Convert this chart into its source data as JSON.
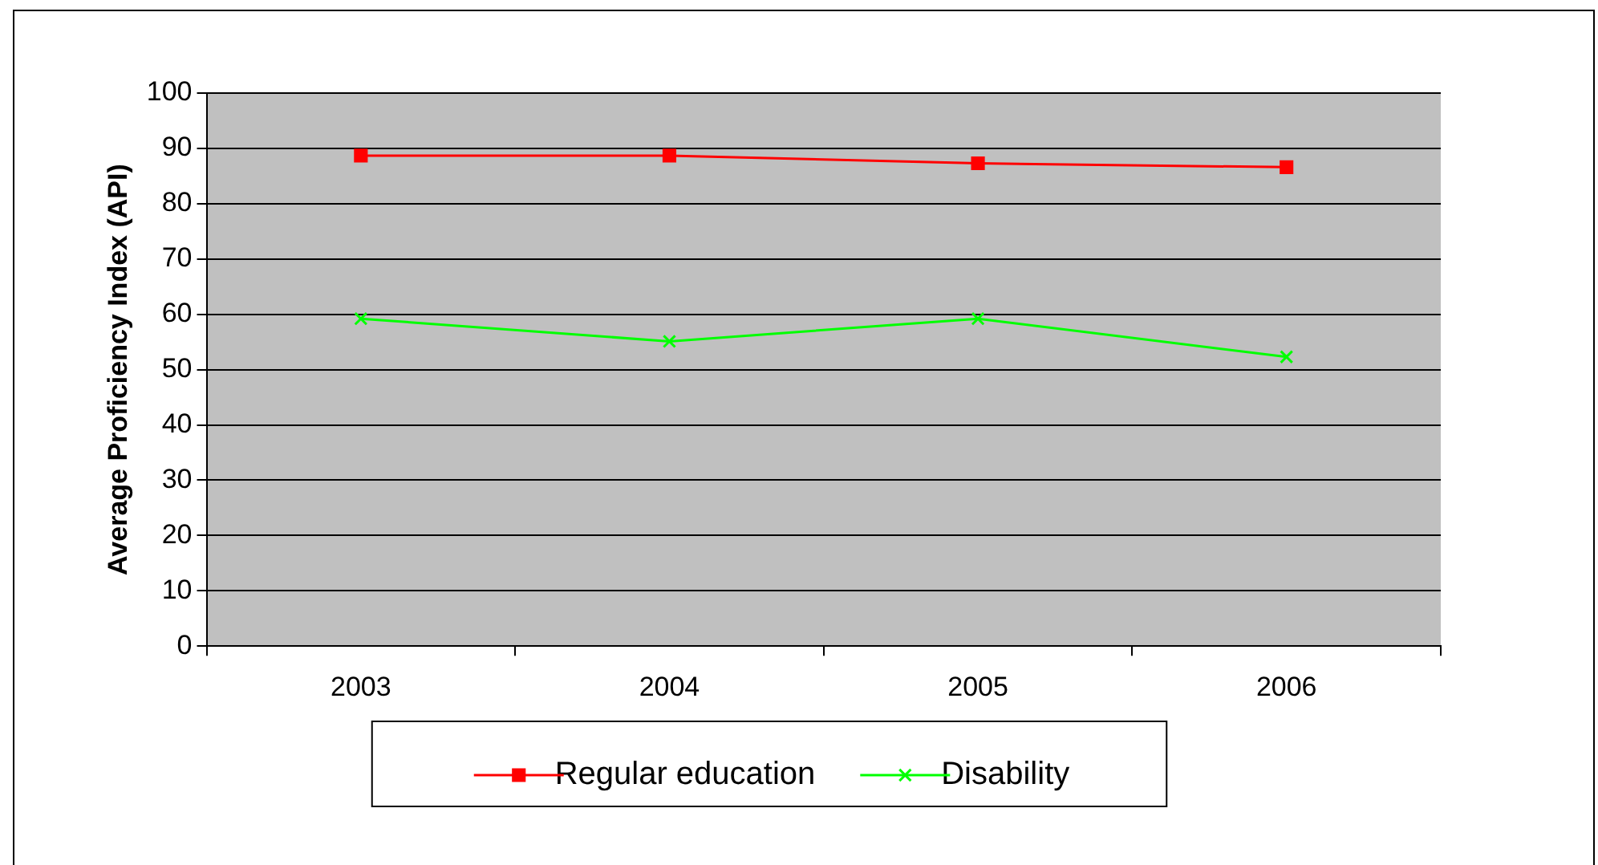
{
  "chart_data": {
    "type": "line",
    "ylabel": "Average Proficiency Index (API)",
    "categories": [
      "2003",
      "2004",
      "2005",
      "2006"
    ],
    "series": [
      {
        "name": "Regular education",
        "color": "#ff0000",
        "marker": "square",
        "values": [
          88.7,
          88.7,
          87.3,
          86.6
        ]
      },
      {
        "name": "Disability",
        "color": "#00ff00",
        "marker": "cross",
        "values": [
          59.2,
          55.1,
          59.2,
          52.3
        ]
      }
    ],
    "ylim": [
      0,
      100
    ],
    "yticks": [
      0,
      10,
      20,
      30,
      40,
      50,
      60,
      70,
      80,
      90,
      100
    ],
    "grid": "y",
    "legend": "bottom"
  }
}
